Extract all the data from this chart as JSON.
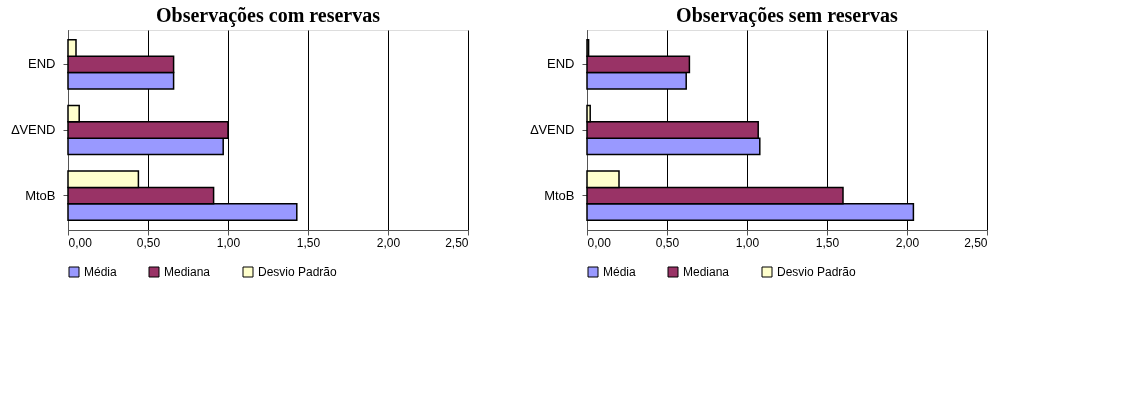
{
  "chart_data": [
    {
      "type": "bar",
      "orientation": "horizontal",
      "title": "Observações com reservas",
      "categories": [
        "END",
        "∆VEND",
        "MtoB"
      ],
      "xlim": [
        0,
        2.5
      ],
      "xticks": [
        {
          "value": 0,
          "label": "0,00"
        },
        {
          "value": 0.5,
          "label": "0,50"
        },
        {
          "value": 1,
          "label": "1,00"
        },
        {
          "value": 1.5,
          "label": "1,50"
        },
        {
          "value": 2,
          "label": "2,00"
        },
        {
          "value": 2.5,
          "label": "2,50"
        }
      ],
      "grid": "x",
      "legend": "bottom",
      "series": [
        {
          "name": "Média",
          "color": "#9999ff",
          "values": [
            0.66,
            0.97,
            1.43
          ]
        },
        {
          "name": "Mediana",
          "color": "#993366",
          "values": [
            0.66,
            1.0,
            0.91
          ]
        },
        {
          "name": "Desvio Padrão",
          "color": "#ffffcc",
          "values": [
            0.05,
            0.07,
            0.44
          ]
        }
      ]
    },
    {
      "type": "bar",
      "orientation": "horizontal",
      "title": "Observações sem reservas",
      "categories": [
        "END",
        "∆VEND",
        "MtoB"
      ],
      "xlim": [
        0,
        2.5
      ],
      "xticks": [
        {
          "value": 0,
          "label": "0,00"
        },
        {
          "value": 0.5,
          "label": "0,50"
        },
        {
          "value": 1,
          "label": "1,00"
        },
        {
          "value": 1.5,
          "label": "1,50"
        },
        {
          "value": 2,
          "label": "2,00"
        },
        {
          "value": 2.5,
          "label": "2,50"
        }
      ],
      "grid": "x",
      "legend": "bottom",
      "series": [
        {
          "name": "Média",
          "color": "#9999ff",
          "values": [
            0.62,
            1.08,
            2.04
          ]
        },
        {
          "name": "Mediana",
          "color": "#993366",
          "values": [
            0.64,
            1.07,
            1.6
          ]
        },
        {
          "name": "Desvio Padrão",
          "color": "#ffffcc",
          "values": [
            0.01,
            0.02,
            0.2
          ]
        }
      ]
    }
  ]
}
